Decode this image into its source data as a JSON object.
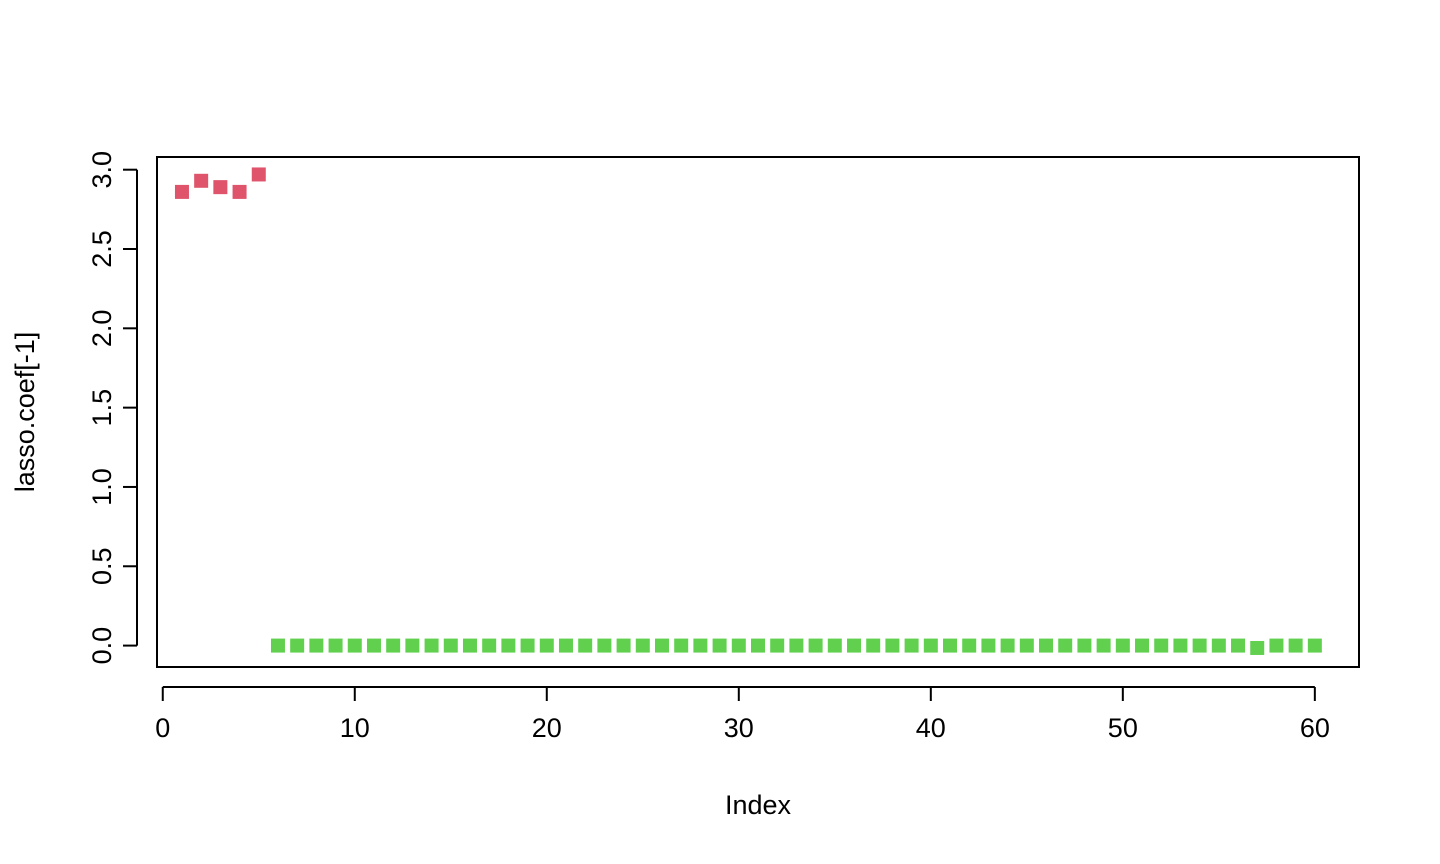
{
  "chart_data": {
    "type": "scatter",
    "title": "",
    "xlabel": "Index",
    "ylabel": "lasso.coef[-1]",
    "xlim": [
      -0.3,
      62.3
    ],
    "ylim": [
      -0.135,
      3.08
    ],
    "x_ticks": [
      0,
      10,
      20,
      30,
      40,
      50,
      60
    ],
    "x_tick_labels": [
      "0",
      "10",
      "20",
      "30",
      "40",
      "50",
      "60"
    ],
    "y_ticks": [
      0.0,
      0.5,
      1.0,
      1.5,
      2.0,
      2.5,
      3.0
    ],
    "y_tick_labels": [
      "0.0",
      "0.5",
      "1.0",
      "1.5",
      "2.0",
      "2.5",
      "3.0"
    ],
    "grid": false,
    "legend": "none",
    "marker": "square",
    "colors": {
      "nonzero": "#DF536B",
      "zero": "#61D04F"
    },
    "series": [
      {
        "color_key": "nonzero",
        "x": [
          1,
          2,
          3,
          4,
          5
        ],
        "y": [
          2.86,
          2.93,
          2.89,
          2.86,
          2.97
        ]
      },
      {
        "color_key": "zero",
        "x": [
          6,
          7,
          8,
          9,
          10,
          11,
          12,
          13,
          14,
          15,
          16,
          17,
          18,
          19,
          20,
          21,
          22,
          23,
          24,
          25,
          26,
          27,
          28,
          29,
          30,
          31,
          32,
          33,
          34,
          35,
          36,
          37,
          38,
          39,
          40,
          41,
          42,
          43,
          44,
          45,
          46,
          47,
          48,
          49,
          50,
          51,
          52,
          53,
          54,
          55,
          56,
          57,
          58,
          59,
          60
        ],
        "y": [
          0,
          0,
          0,
          0,
          0,
          0,
          0,
          0,
          0,
          0,
          0,
          0,
          0,
          0,
          0,
          0,
          0,
          0,
          0,
          0,
          0,
          0,
          0,
          0,
          0,
          0,
          0,
          0,
          0,
          0,
          0,
          0,
          0,
          0,
          0,
          0,
          0,
          0,
          0,
          0,
          0,
          0,
          0,
          0,
          0,
          0,
          0,
          0,
          0,
          0,
          0,
          -0.015,
          0,
          0,
          0
        ]
      }
    ]
  }
}
